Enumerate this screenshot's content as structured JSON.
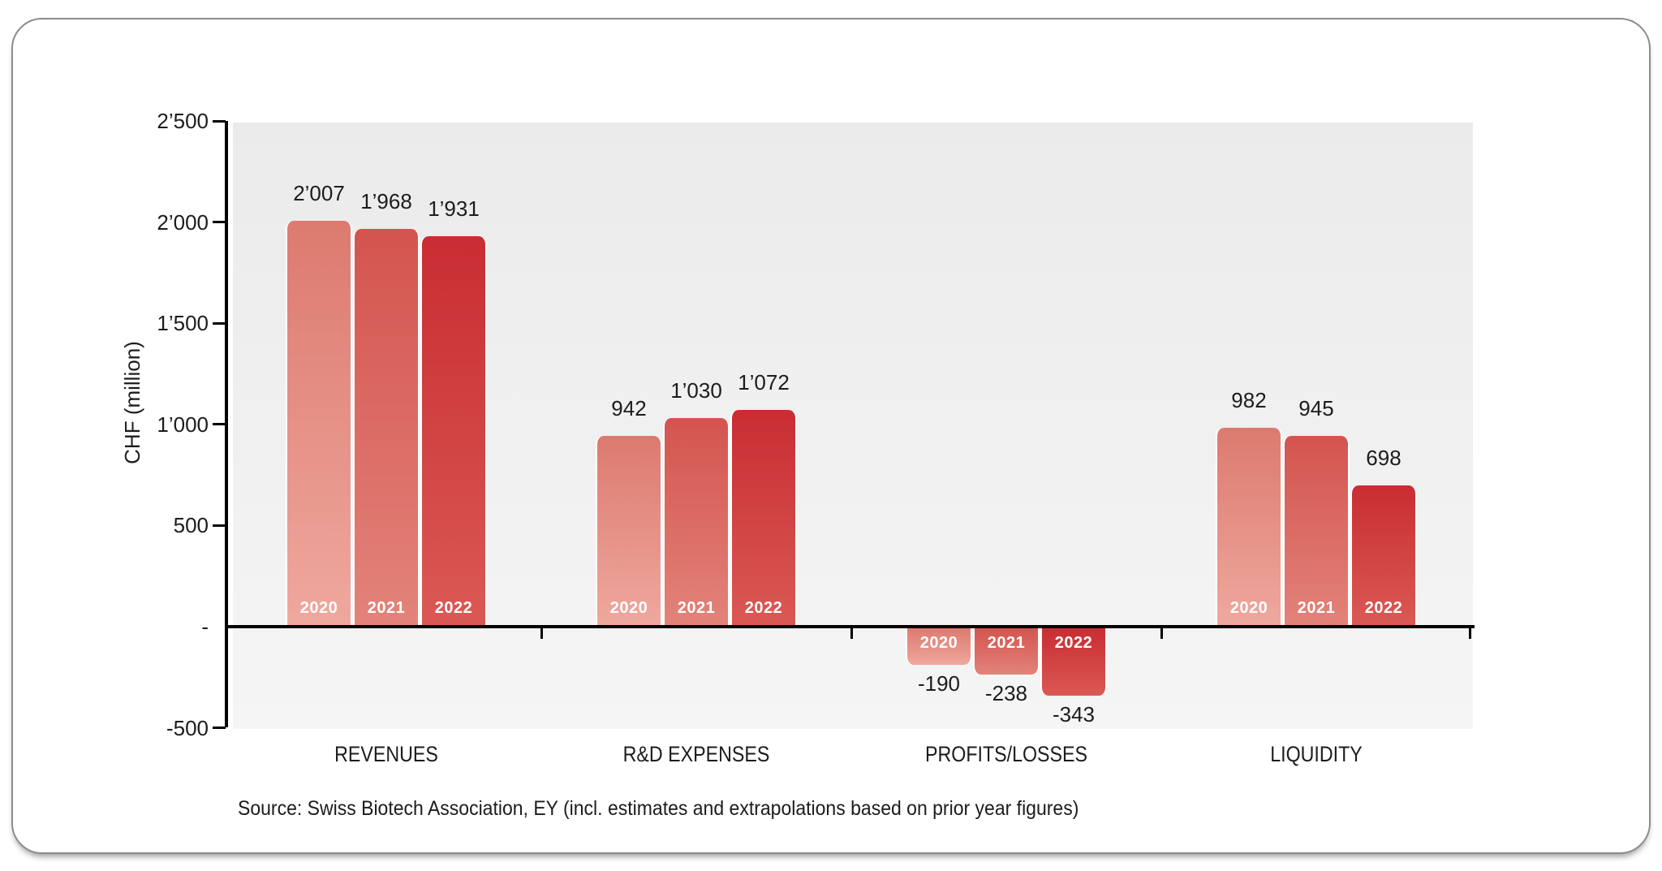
{
  "chart_data": {
    "type": "bar",
    "ylabel": "CHF (million)",
    "xlabel": "",
    "ylim": [
      -500,
      2500
    ],
    "grid": false,
    "legend_position": "none (year labels printed inside bars)",
    "y_axis": {
      "ticks": [
        {
          "label": "2’500",
          "value": 2500
        },
        {
          "label": "2’000",
          "value": 2000
        },
        {
          "label": "1’500",
          "value": 1500
        },
        {
          "label": "1’000",
          "value": 1000
        },
        {
          "label": "500",
          "value": 500
        },
        {
          "label": "-",
          "value": 0
        },
        {
          "label": "-500",
          "value": -500
        }
      ]
    },
    "categories": [
      "REVENUES",
      "R&D EXPENSES",
      "PROFITS/LOSSES",
      "LIQUIDITY"
    ],
    "series": [
      {
        "name": "2020",
        "values": [
          2007,
          942,
          -190,
          982
        ],
        "value_labels": [
          "2’007",
          "942",
          "-190",
          "982"
        ],
        "color_top": "#DC7A6F",
        "color_bottom": "#EFA89E"
      },
      {
        "name": "2021",
        "values": [
          1968,
          1030,
          -238,
          945
        ],
        "value_labels": [
          "1’968",
          "1’030",
          "-238",
          "945"
        ],
        "color_top": "#D4544F",
        "color_bottom": "#E2837A"
      },
      {
        "name": "2022",
        "values": [
          1931,
          1072,
          -343,
          698
        ],
        "value_labels": [
          "1’931",
          "1’072",
          "-343",
          "698"
        ],
        "color_top": "#C92D33",
        "color_bottom": "#DA5954"
      }
    ],
    "source": "Source: Swiss Biotech Association, EY (incl. estimates and extrapolations based on prior year figures)",
    "colors": {
      "axis": "#000000",
      "plot_bg_top": "#ebebeb",
      "plot_bg_bottom": "#f5f5f5",
      "text": "#1c1c1c",
      "bar_year_text": "#ffffff",
      "card_border": "#8c8c8c"
    }
  }
}
